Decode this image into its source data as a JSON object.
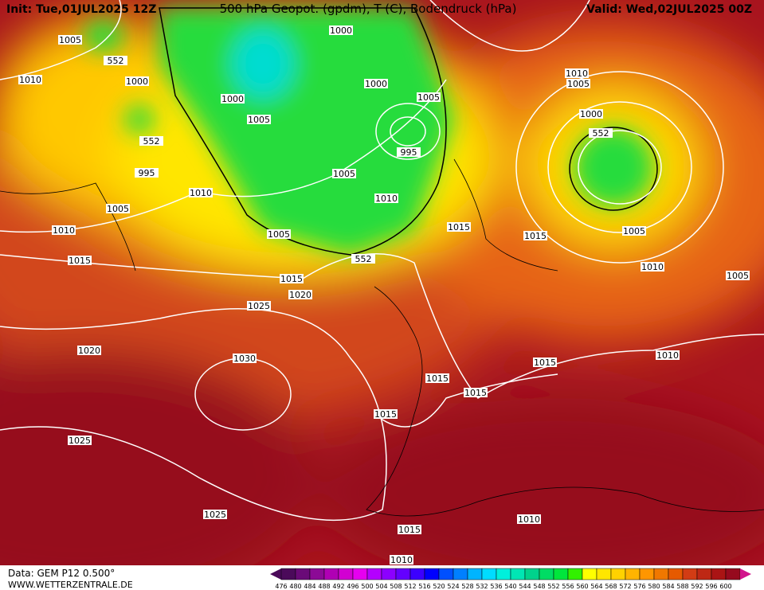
{
  "header": {
    "init": "Init: Tue,01JUL2025 12Z",
    "title": "500 hPa Geopot. (gpdm), T (C), Bodendruck (hPa)",
    "valid": "Valid: Wed,02JUL2025 00Z"
  },
  "footer": {
    "data": "Data: GEM P12 0.500°",
    "site": "WWW.WETTERZENTRALE.DE"
  },
  "isobar_labels": [
    "1005",
    "552",
    "1010",
    "1000",
    "1000",
    "552",
    "995",
    "1005",
    "1010",
    "1010",
    "1015",
    "1000",
    "1000",
    "1005",
    "1005",
    "995",
    "1005",
    "1010",
    "1005",
    "552",
    "1015",
    "1020",
    "1025",
    "1020",
    "1030",
    "1025",
    "1025",
    "1010",
    "1005",
    "1000",
    "552",
    "1015",
    "1015",
    "1005",
    "1010",
    "1005",
    "1010",
    "1015",
    "1015",
    "1015",
    "1015",
    "1015",
    "1010",
    "1010"
  ],
  "colorbar": {
    "values": [
      476,
      480,
      484,
      488,
      492,
      496,
      500,
      504,
      508,
      512,
      516,
      520,
      524,
      528,
      532,
      536,
      540,
      544,
      548,
      552,
      556,
      560,
      564,
      568,
      572,
      576,
      580,
      584,
      588,
      592,
      596,
      600
    ],
    "colors": [
      "#4b0a5a",
      "#6a0a78",
      "#8c0a96",
      "#b000b4",
      "#d200d2",
      "#e600f0",
      "#b400ff",
      "#8c00ff",
      "#6400ff",
      "#3c00ff",
      "#0000ff",
      "#0050ff",
      "#0080ff",
      "#00b4ff",
      "#00dcff",
      "#00f0dc",
      "#00e6b4",
      "#00d28c",
      "#00dc64",
      "#00e63c",
      "#32f000",
      "#ffff00",
      "#ffe600",
      "#ffd200",
      "#ffb400",
      "#ff9600",
      "#f07800",
      "#e65a00",
      "#d23c14",
      "#be2814",
      "#aa1414",
      "#960a1e"
    ]
  }
}
